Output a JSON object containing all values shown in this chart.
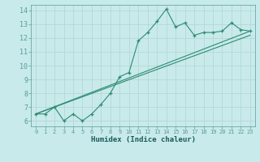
{
  "x": [
    0,
    1,
    2,
    3,
    4,
    5,
    6,
    7,
    8,
    9,
    10,
    11,
    12,
    13,
    14,
    15,
    16,
    17,
    18,
    19,
    20,
    21,
    22,
    23
  ],
  "y_zigzag": [
    6.5,
    6.5,
    7.0,
    6.0,
    6.5,
    6.0,
    6.5,
    7.2,
    8.0,
    9.2,
    9.5,
    11.8,
    12.4,
    13.2,
    14.1,
    12.8,
    13.1,
    12.2,
    12.4,
    12.4,
    12.5,
    13.1,
    12.6,
    12.5
  ],
  "trend1": [
    6.5,
    12.2
  ],
  "trend2": [
    6.5,
    12.5
  ],
  "line_color": "#2e8b72",
  "bg_color": "#c8eaea",
  "grid_color": "#b0d4d4",
  "xlabel": "Humidex (Indice chaleur)",
  "ylim": [
    5.6,
    14.4
  ],
  "xlim": [
    -0.5,
    23.5
  ],
  "yticks": [
    6,
    7,
    8,
    9,
    10,
    11,
    12,
    13,
    14
  ],
  "xticks": [
    0,
    1,
    2,
    3,
    4,
    5,
    6,
    7,
    8,
    9,
    10,
    11,
    12,
    13,
    14,
    15,
    16,
    17,
    18,
    19,
    20,
    21,
    22,
    23
  ]
}
